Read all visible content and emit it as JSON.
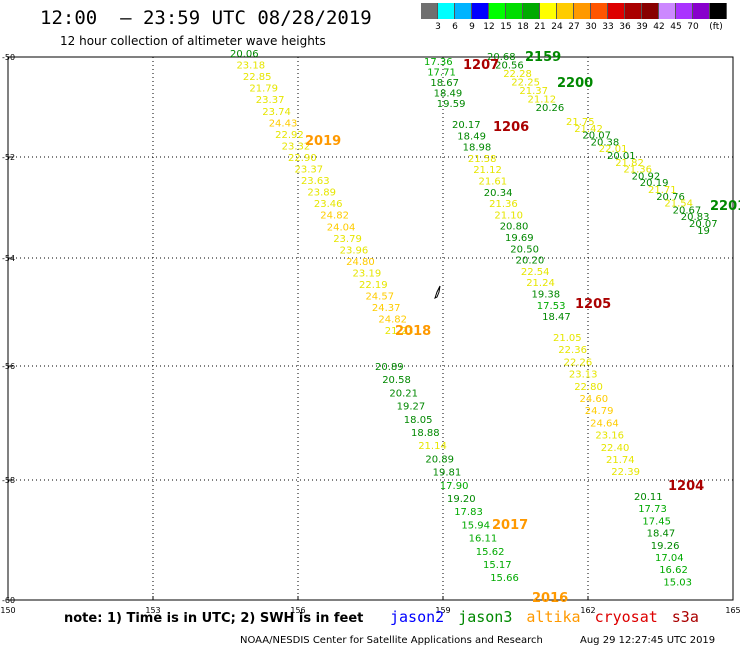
{
  "title": "12:00  – 23:59 UTC 08/28/2019",
  "subtitle": "12 hour collection of altimeter wave heights",
  "legend": {
    "colors": [
      "#707070",
      "#00ffff",
      "#00b4ff",
      "#0000ff",
      "#00ff00",
      "#00dd00",
      "#00aa00",
      "#ffff00",
      "#ffcc00",
      "#ff9900",
      "#ff5500",
      "#dd0000",
      "#aa0000",
      "#880000",
      "#cc88ff",
      "#aa33ff",
      "#8800cc",
      "#000000"
    ],
    "labels": [
      "3",
      "6",
      "9",
      "12",
      "15",
      "18",
      "21",
      "24",
      "27",
      "30",
      "33",
      "36",
      "39",
      "42",
      "45",
      "70",
      "(ft)"
    ]
  },
  "axes": {
    "x_labels": [
      "150",
      "153",
      "156",
      "159",
      "162",
      "165"
    ],
    "y_labels": [
      "-50",
      "-52",
      "-54",
      "-56",
      "-58",
      "-60"
    ]
  },
  "passes": [
    {
      "label": "2019",
      "color": "#ff9900"
    },
    {
      "label": "2018",
      "color": "#ff9900"
    },
    {
      "label": "1207",
      "color": "#aa0000"
    },
    {
      "label": "1206",
      "color": "#aa0000"
    },
    {
      "label": "1205",
      "color": "#aa0000"
    },
    {
      "label": "1204",
      "color": "#aa0000"
    },
    {
      "label": "2159",
      "color": "#008800"
    },
    {
      "label": "2200",
      "color": "#008800"
    },
    {
      "label": "2201",
      "color": "#008800"
    },
    {
      "label": "2017",
      "color": "#ff9900"
    },
    {
      "label": "2016",
      "color": "#ff9900"
    }
  ],
  "tracks": [
    {
      "id": "2019",
      "values": [
        "20.06",
        "23.18",
        "22.85",
        "21.79",
        "23.37",
        "23.74",
        "24.43",
        "22.92",
        "23.32",
        "22.90",
        "23.37",
        "23.63",
        "23.89",
        "23.46",
        "24.82",
        "24.04",
        "23.79",
        "23.96",
        "24.80",
        "23.19",
        "22.19",
        "24.57",
        "24.37",
        "24.82",
        "21.23"
      ]
    },
    {
      "id": "2018",
      "values": [
        "20.89",
        "20.58",
        "20.21",
        "19.27",
        "18.05",
        "18.88",
        "21.14",
        "20.89",
        "19.81",
        "17.90",
        "19.20",
        "17.83",
        "15.94",
        "16.11",
        "15.62",
        "15.17",
        "15.66"
      ]
    },
    {
      "id": "1207",
      "values": [
        "17.36",
        "17.71",
        "18.67",
        "18.49",
        "19.59"
      ]
    },
    {
      "id": "1206",
      "values": [
        "20.17",
        "18.49",
        "18.98",
        "21.58",
        "21.12",
        "21.61",
        "20.34",
        "21.36",
        "21.10",
        "20.80",
        "19.69",
        "20.50",
        "20.20",
        "22.54",
        "21.24",
        "19.38",
        "17.53",
        "18.47"
      ]
    },
    {
      "id": "1205",
      "values": [
        "21.05",
        "22.36",
        "22.26",
        "23.13",
        "22.80",
        "24.60",
        "24.79",
        "24.64",
        "23.16",
        "22.40",
        "21.74",
        "22.39"
      ]
    },
    {
      "id": "1204",
      "values": [
        "20.11",
        "17.73",
        "17.45",
        "18.47",
        "19.26",
        "17.04",
        "16.62",
        "15.03"
      ]
    },
    {
      "id": "2159",
      "values": [
        "20.68",
        "20.56",
        "22.28",
        "22.25",
        "21.37",
        "21.12",
        "20.26"
      ]
    },
    {
      "id": "2200",
      "values": [
        "21.75",
        "21.42",
        "20.07",
        "20.38",
        "22.01",
        "20.01",
        "21.82",
        "21.36",
        "20.92",
        "20.19",
        "21.71",
        "20.76",
        "21.54",
        "20.67",
        "20.83",
        "20.07",
        "19"
      ]
    }
  ],
  "note": "note:  1) Time is in UTC;  2) SWH is in feet",
  "satellites": [
    {
      "name": "jason2",
      "color": "#0000ff"
    },
    {
      "name": "jason3",
      "color": "#008800"
    },
    {
      "name": "altika",
      "color": "#ff9900"
    },
    {
      "name": "cryosat",
      "color": "#dd0000"
    },
    {
      "name": "s3a",
      "color": "#aa0000"
    }
  ],
  "footer": "NOAA/NESDIS Center for Satellite Applications and Research",
  "footer_time": "Aug 29 12:27:45 UTC 2019"
}
